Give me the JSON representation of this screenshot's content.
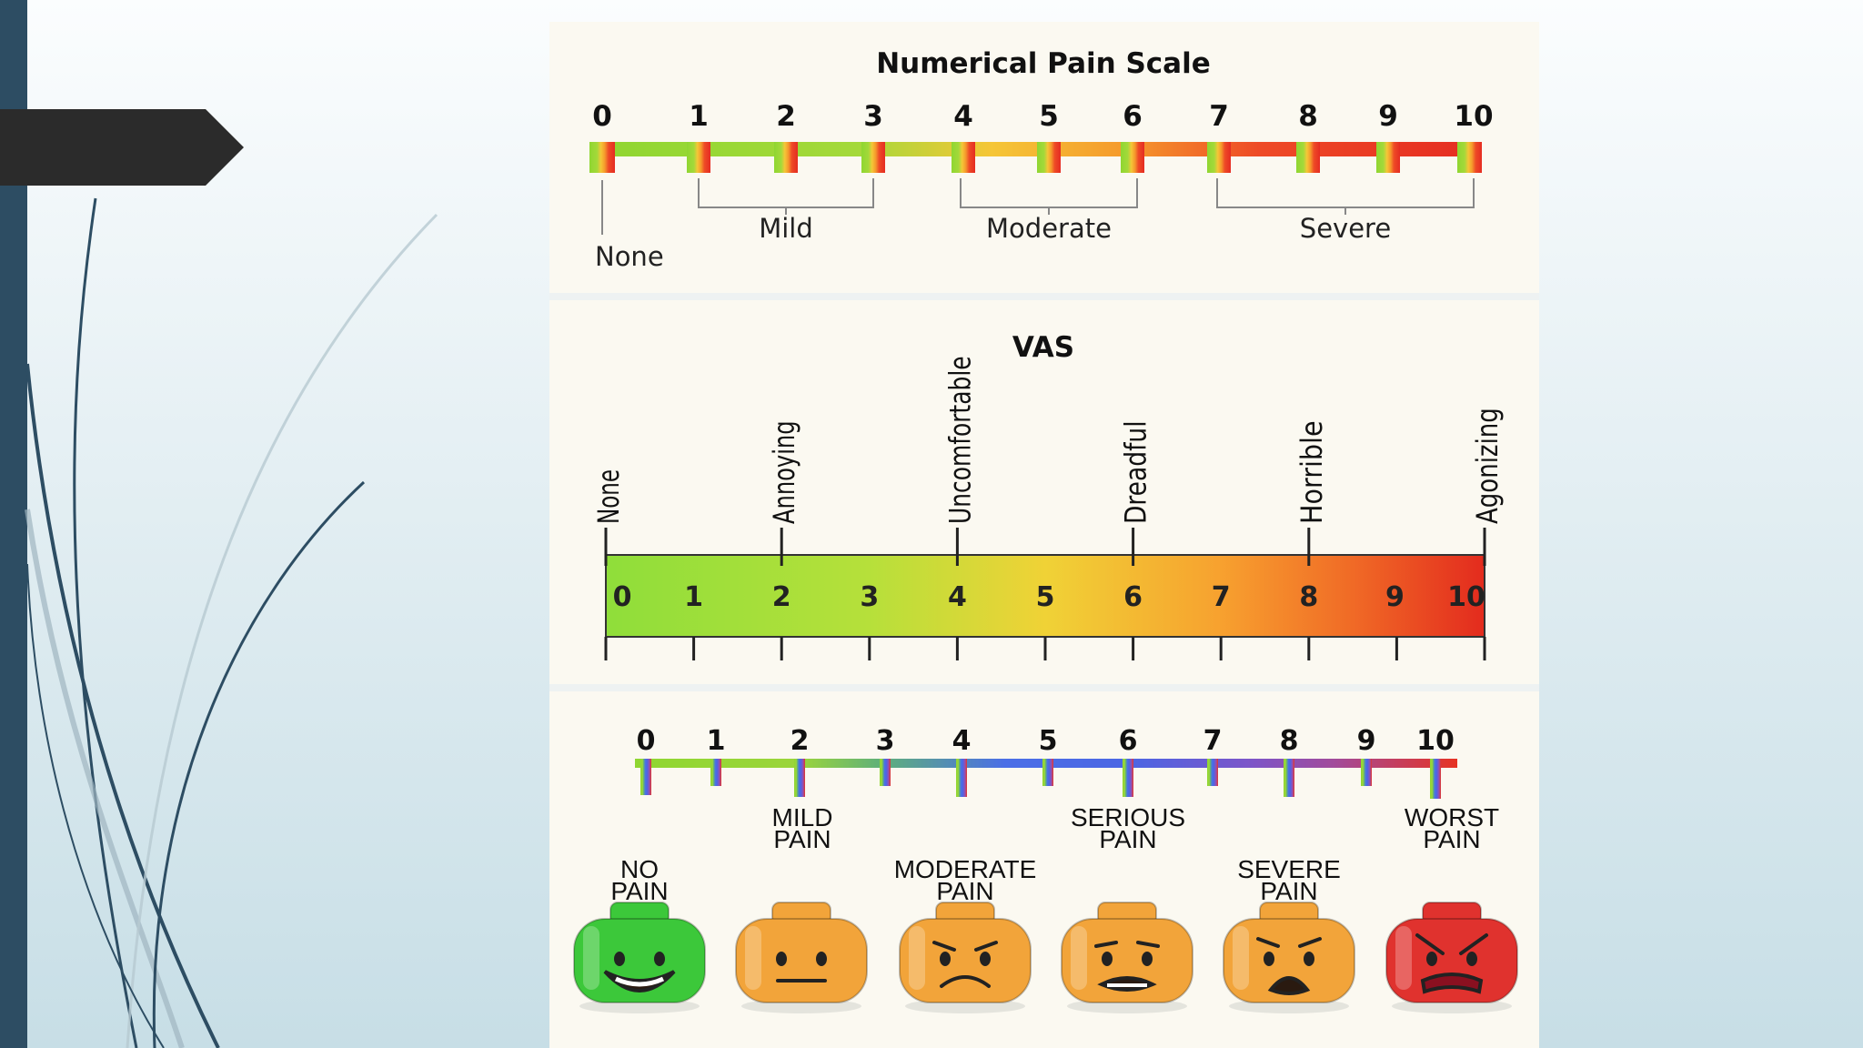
{
  "nrs": {
    "title": "Numerical Pain Scale",
    "numbers": [
      "0",
      "1",
      "2",
      "3",
      "4",
      "5",
      "6",
      "7",
      "8",
      "9",
      "10"
    ],
    "groups": [
      {
        "label": "None"
      },
      {
        "label": "Mild"
      },
      {
        "label": "Moderate"
      },
      {
        "label": "Severe"
      }
    ]
  },
  "vas": {
    "title": "VAS",
    "descriptors": [
      "None",
      "Annoying",
      "Uncomfortable",
      "Dreadful",
      "Horrible",
      "Agonizing"
    ],
    "numbers": [
      "0",
      "1",
      "2",
      "3",
      "4",
      "5",
      "6",
      "7",
      "8",
      "9",
      "10"
    ]
  },
  "faces_scale": {
    "numbers": [
      "0",
      "1",
      "2",
      "3",
      "4",
      "5",
      "6",
      "7",
      "8",
      "9",
      "10"
    ],
    "upper_labels": [
      {
        "line1": "MILD",
        "line2": "PAIN"
      },
      {
        "line1": "SERIOUS",
        "line2": "PAIN"
      },
      {
        "line1": "WORST",
        "line2": "PAIN"
      }
    ],
    "lower_labels": [
      {
        "line1": "NO",
        "line2": "PAIN"
      },
      {
        "line1": "MODERATE",
        "line2": "PAIN"
      },
      {
        "line1": "SEVERE",
        "line2": "PAIN"
      }
    ],
    "faces": [
      {
        "name": "no-pain-face-icon",
        "color": "#3cc83a"
      },
      {
        "name": "mild-pain-face-icon",
        "color": "#f2a43a"
      },
      {
        "name": "moderate-pain-face-icon",
        "color": "#f2a43a"
      },
      {
        "name": "serious-pain-face-icon",
        "color": "#f2a43a"
      },
      {
        "name": "severe-pain-face-icon",
        "color": "#f2a43a"
      },
      {
        "name": "worst-pain-face-icon",
        "color": "#e0322e"
      }
    ]
  },
  "colors": {
    "sidebar": "#2d4d63",
    "arrow_tab": "#2b2b2b",
    "green": "#8fd631",
    "yellow": "#f5c637",
    "orange": "#f59a2c",
    "red": "#e63324",
    "blue": "#4b6fe6",
    "purple": "#8b4fb4"
  }
}
